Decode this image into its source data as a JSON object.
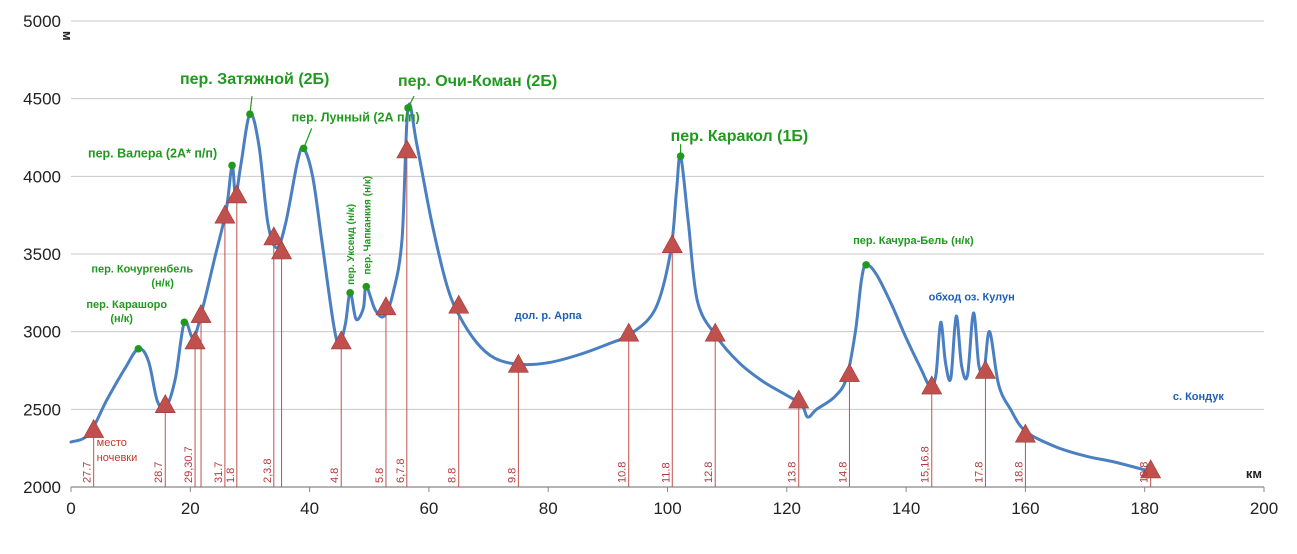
{
  "chart_data": {
    "type": "line",
    "xlabel": "км",
    "ylabel": "м",
    "xlim": [
      0,
      200
    ],
    "ylim": [
      2000,
      5000
    ],
    "x_ticks": [
      0,
      20,
      40,
      60,
      80,
      100,
      120,
      140,
      160,
      180,
      200
    ],
    "y_ticks": [
      2000,
      2500,
      3000,
      3500,
      4000,
      4500,
      5000
    ],
    "grid": "horizontal",
    "line_color": "#4a7fc1",
    "marker_color": "#c0504d",
    "pass_color": "#1f9a1f",
    "place_color": "#1f5fb4",
    "profile": [
      [
        0,
        2290
      ],
      [
        3,
        2340
      ],
      [
        6,
        2560
      ],
      [
        9,
        2760
      ],
      [
        11.3,
        2890
      ],
      [
        13,
        2810
      ],
      [
        14.5,
        2550
      ],
      [
        16,
        2520
      ],
      [
        17.5,
        2700
      ],
      [
        19,
        3060
      ],
      [
        20.5,
        2960
      ],
      [
        22,
        3140
      ],
      [
        24,
        3460
      ],
      [
        26,
        3780
      ],
      [
        27,
        4070
      ],
      [
        27.6,
        3880
      ],
      [
        28.5,
        4080
      ],
      [
        30,
        4400
      ],
      [
        31.5,
        4200
      ],
      [
        33,
        3700
      ],
      [
        34.5,
        3540
      ],
      [
        36,
        3700
      ],
      [
        38,
        4100
      ],
      [
        39,
        4180
      ],
      [
        40.5,
        4000
      ],
      [
        42,
        3600
      ],
      [
        44,
        3050
      ],
      [
        45,
        2920
      ],
      [
        46,
        3050
      ],
      [
        46.8,
        3250
      ],
      [
        47.8,
        3080
      ],
      [
        49,
        3150
      ],
      [
        49.5,
        3290
      ],
      [
        51,
        3140
      ],
      [
        52.5,
        3100
      ],
      [
        54,
        3250
      ],
      [
        55.5,
        3600
      ],
      [
        56.5,
        4440
      ],
      [
        58,
        4200
      ],
      [
        60.5,
        3700
      ],
      [
        63,
        3300
      ],
      [
        65,
        3110
      ],
      [
        68,
        2930
      ],
      [
        71,
        2830
      ],
      [
        75,
        2790
      ],
      [
        80,
        2800
      ],
      [
        85,
        2850
      ],
      [
        90,
        2920
      ],
      [
        94,
        2990
      ],
      [
        98,
        3150
      ],
      [
        100.5,
        3510
      ],
      [
        101.5,
        3900
      ],
      [
        102.2,
        4130
      ],
      [
        103.5,
        3700
      ],
      [
        105,
        3200
      ],
      [
        108,
        2980
      ],
      [
        112,
        2800
      ],
      [
        116,
        2680
      ],
      [
        120,
        2590
      ],
      [
        122.5,
        2530
      ],
      [
        123.5,
        2450
      ],
      [
        125,
        2500
      ],
      [
        128,
        2580
      ],
      [
        130,
        2700
      ],
      [
        131.5,
        3000
      ],
      [
        132.5,
        3330
      ],
      [
        133.3,
        3430
      ],
      [
        135,
        3370
      ],
      [
        137.5,
        3180
      ],
      [
        140,
        2960
      ],
      [
        142.5,
        2760
      ],
      [
        144,
        2650
      ],
      [
        145,
        2720
      ],
      [
        145.8,
        3060
      ],
      [
        146.6,
        2800
      ],
      [
        147.5,
        2700
      ],
      [
        148.4,
        3100
      ],
      [
        149.3,
        2780
      ],
      [
        150.3,
        2720
      ],
      [
        151.3,
        3120
      ],
      [
        152.2,
        2780
      ],
      [
        153.1,
        2760
      ],
      [
        154,
        3000
      ],
      [
        155.5,
        2660
      ],
      [
        157.5,
        2500
      ],
      [
        160,
        2360
      ],
      [
        165,
        2260
      ],
      [
        170,
        2200
      ],
      [
        175,
        2160
      ],
      [
        181,
        2100
      ]
    ],
    "passes": [
      {
        "label": "пер. Карашоро",
        "label2": "(н/к)",
        "x": 11.3,
        "y": 2890
      },
      {
        "label": "пер. Кочургенбель",
        "label2": "(н/к)",
        "x": 19,
        "y": 3060
      },
      {
        "label": "пер. Валера (2А* п/п)",
        "x": 27,
        "y": 4070
      },
      {
        "label": "пер. Затяжной (2Б)",
        "x": 30,
        "y": 4400
      },
      {
        "label": "пер. Лунный (2А п/п)",
        "x": 39,
        "y": 4180
      },
      {
        "label": "пер. Уксеид (н/к)",
        "x": 46.8,
        "y": 3250
      },
      {
        "label": "пер. Чапканкия (н/к)",
        "x": 49.5,
        "y": 3290
      },
      {
        "label": "пер. Очи-Коман (2Б)",
        "x": 56.5,
        "y": 4440
      },
      {
        "label": "пер. Каракол (1Б)",
        "x": 102.2,
        "y": 4130
      },
      {
        "label": "пер. Качура-Бель (н/к)",
        "x": 133.3,
        "y": 3430
      }
    ],
    "places": [
      {
        "label": "дол. р. Арпа",
        "x": 80,
        "y": 3080
      },
      {
        "label": "обход оз. Кулун",
        "x": 151,
        "y": 3200
      },
      {
        "label": "с. Кондук",
        "x": 189,
        "y": 2560
      }
    ],
    "camp_note": "место ночевки",
    "camps": [
      {
        "x": 3.8,
        "y": 2370,
        "day": "27.7"
      },
      {
        "x": 15.8,
        "y": 2530,
        "day": "28.7"
      },
      {
        "x": 20.8,
        "y": 2940,
        "day": "29,30.7"
      },
      {
        "x": 21.8,
        "y": 3110
      },
      {
        "x": 25.8,
        "y": 3750,
        "day": "31.7"
      },
      {
        "x": 27.8,
        "y": 3880,
        "day": "1.8"
      },
      {
        "x": 34,
        "y": 3610,
        "day": "2,3.8"
      },
      {
        "x": 35.3,
        "y": 3520
      },
      {
        "x": 45.3,
        "y": 2940,
        "day": "4.8"
      },
      {
        "x": 52.8,
        "y": 3160,
        "day": "5.8"
      },
      {
        "x": 56.3,
        "y": 4170,
        "day": "6,7.8"
      },
      {
        "x": 65,
        "y": 3170,
        "day": "8.8"
      },
      {
        "x": 75,
        "y": 2790,
        "day": "9.8"
      },
      {
        "x": 93.5,
        "y": 2990,
        "day": "10.8"
      },
      {
        "x": 100.8,
        "y": 3560,
        "day": "11.8"
      },
      {
        "x": 108,
        "y": 2990,
        "day": "12.8"
      },
      {
        "x": 122,
        "y": 2560,
        "day": "13.8"
      },
      {
        "x": 130.5,
        "y": 2730,
        "day": "14.8"
      },
      {
        "x": 144.3,
        "y": 2650,
        "day": "15,16.8"
      },
      {
        "x": 153.3,
        "y": 2750,
        "day": "17.8"
      },
      {
        "x": 160,
        "y": 2340,
        "day": "18.8"
      },
      {
        "x": 181,
        "y": 2110,
        "day": "19.8"
      }
    ]
  }
}
